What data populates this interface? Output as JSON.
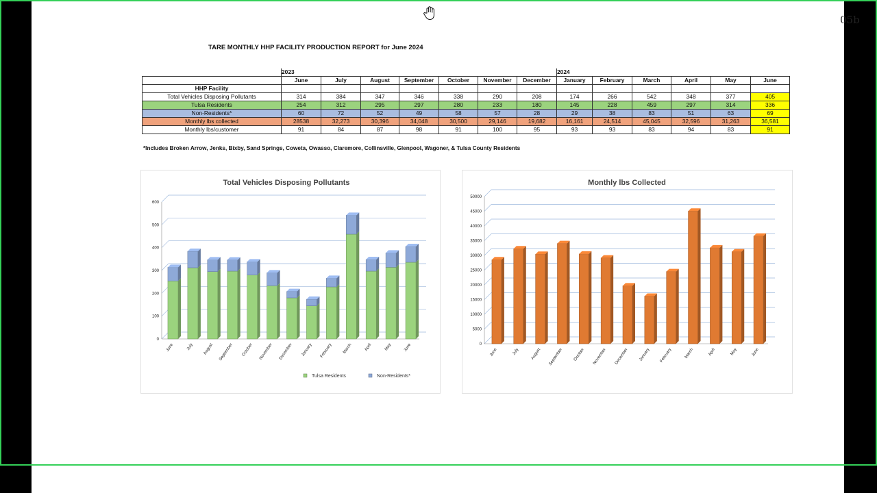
{
  "page_number": "05b",
  "report_title": "TARE MONTHLY HHP FACILITY PRODUCTION REPORT for June 2024",
  "table": {
    "year_labels": [
      "2023",
      "2024"
    ],
    "months": [
      "June",
      "July",
      "August",
      "September",
      "October",
      "November",
      "December",
      "January",
      "February",
      "March",
      "April",
      "May",
      "June"
    ],
    "section_label": "HHP Facility",
    "rows": [
      {
        "label": "Total Vehicles Disposing Pollutants",
        "values": [
          "314",
          "384",
          "347",
          "346",
          "338",
          "290",
          "208",
          "174",
          "266",
          "542",
          "348",
          "377",
          "405"
        ],
        "color": "none"
      },
      {
        "label": "Tulsa Residents",
        "values": [
          "254",
          "312",
          "295",
          "297",
          "280",
          "233",
          "180",
          "145",
          "228",
          "459",
          "297",
          "314",
          "336"
        ],
        "color": "#9bd37e"
      },
      {
        "label": "Non-Residents*",
        "values": [
          "60",
          "72",
          "52",
          "49",
          "58",
          "57",
          "28",
          "29",
          "38",
          "83",
          "51",
          "63",
          "69"
        ],
        "color": "#a9bde0"
      },
      {
        "label": "Monthly lbs  collected",
        "values": [
          "28538",
          "32,273",
          "30,396",
          "34,048",
          "30,500",
          "29,146",
          "19,682",
          "16,161",
          "24,514",
          "45,045",
          "32,596",
          "31,263",
          "36,581"
        ],
        "color": "#f0a27c"
      },
      {
        "label": "Monthly lbs/customer",
        "values": [
          "91",
          "84",
          "87",
          "98",
          "91",
          "100",
          "95",
          "93",
          "93",
          "83",
          "94",
          "83",
          "91"
        ],
        "color": "none"
      }
    ],
    "highlight_color": "#ffff00"
  },
  "footnote": "*Includes Broken Arrow, Jenks, Bixby, Sand Springs, Coweta, Owasso, Claremore, Collinsville, Glenpool, Wagoner, & Tulsa County Residents",
  "chart_data": [
    {
      "type": "bar",
      "stacked": true,
      "title": "Total Vehicles Disposing Pollutants",
      "categories": [
        "June",
        "July",
        "August",
        "September",
        "October",
        "November",
        "December",
        "January",
        "February",
        "March",
        "April",
        "May",
        "June"
      ],
      "series": [
        {
          "name": "Tulsa Residents",
          "values": [
            254,
            312,
            295,
            297,
            280,
            233,
            180,
            145,
            228,
            459,
            297,
            314,
            336
          ],
          "color": "#9bd37e"
        },
        {
          "name": "Non-Residents*",
          "values": [
            60,
            72,
            52,
            49,
            58,
            57,
            28,
            29,
            38,
            83,
            51,
            63,
            69
          ],
          "color": "#8ea9d8"
        }
      ],
      "ylim": [
        0,
        600
      ],
      "yticks": [
        0,
        100,
        200,
        300,
        400,
        500,
        600
      ],
      "legend": "bottom-right",
      "xlabel": "",
      "ylabel": ""
    },
    {
      "type": "bar",
      "title": "Monthly lbs Collected",
      "categories": [
        "June",
        "July",
        "August",
        "September",
        "October",
        "November",
        "December",
        "January",
        "February",
        "March",
        "April",
        "May",
        "June"
      ],
      "values": [
        28538,
        32273,
        30396,
        34048,
        30500,
        29146,
        19682,
        16161,
        24514,
        45045,
        32596,
        31263,
        36581
      ],
      "color": "#e07a32",
      "ylim": [
        0,
        50000
      ],
      "yticks": [
        0,
        5000,
        10000,
        15000,
        20000,
        25000,
        30000,
        35000,
        40000,
        45000,
        50000
      ],
      "xlabel": "",
      "ylabel": ""
    }
  ]
}
